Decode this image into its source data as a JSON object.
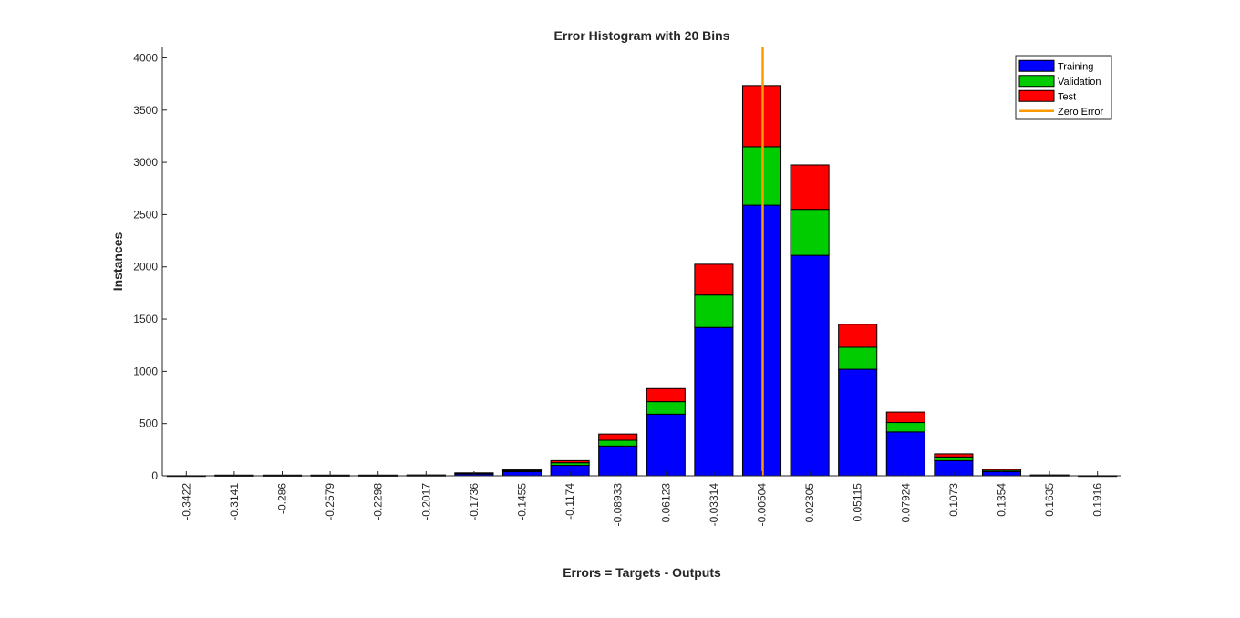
{
  "chart_data": {
    "type": "bar",
    "title": "Error Histogram with 20 Bins",
    "xlabel": "Errors = Targets - Outputs",
    "ylabel": "Instances",
    "ylim": [
      0,
      4100
    ],
    "yticks": [
      0,
      500,
      1000,
      1500,
      2000,
      2500,
      3000,
      3500,
      4000
    ],
    "stacked": true,
    "categories": [
      "-0.3422",
      "-0.3141",
      "-0.286",
      "-0.2579",
      "-0.2298",
      "-0.2017",
      "-0.1736",
      "-0.1455",
      "-0.1174",
      "-0.08933",
      "-0.06123",
      "-0.03314",
      "-0.00504",
      "0.02305",
      "0.05115",
      "0.07924",
      "0.1073",
      "0.1354",
      "0.1635",
      "0.1916"
    ],
    "series": [
      {
        "name": "Training",
        "color": "#0000ff",
        "values": [
          1,
          4,
          4,
          4,
          4,
          5,
          18,
          40,
          100,
          285,
          590,
          1420,
          2590,
          2110,
          1020,
          420,
          145,
          40,
          5,
          1
        ]
      },
      {
        "name": "Validation",
        "color": "#00cc00",
        "values": [
          0,
          1,
          1,
          1,
          1,
          1,
          5,
          8,
          25,
          55,
          120,
          310,
          560,
          440,
          210,
          90,
          35,
          12,
          1,
          0
        ]
      },
      {
        "name": "Test",
        "color": "#ff0000",
        "values": [
          0,
          1,
          1,
          1,
          1,
          1,
          5,
          8,
          20,
          60,
          125,
          295,
          585,
          425,
          220,
          100,
          30,
          13,
          1,
          0
        ]
      }
    ],
    "zero_error": {
      "name": "Zero Error",
      "color": "#ff9900",
      "category_index": 12
    },
    "legend_position": "top-right",
    "grid": false
  }
}
